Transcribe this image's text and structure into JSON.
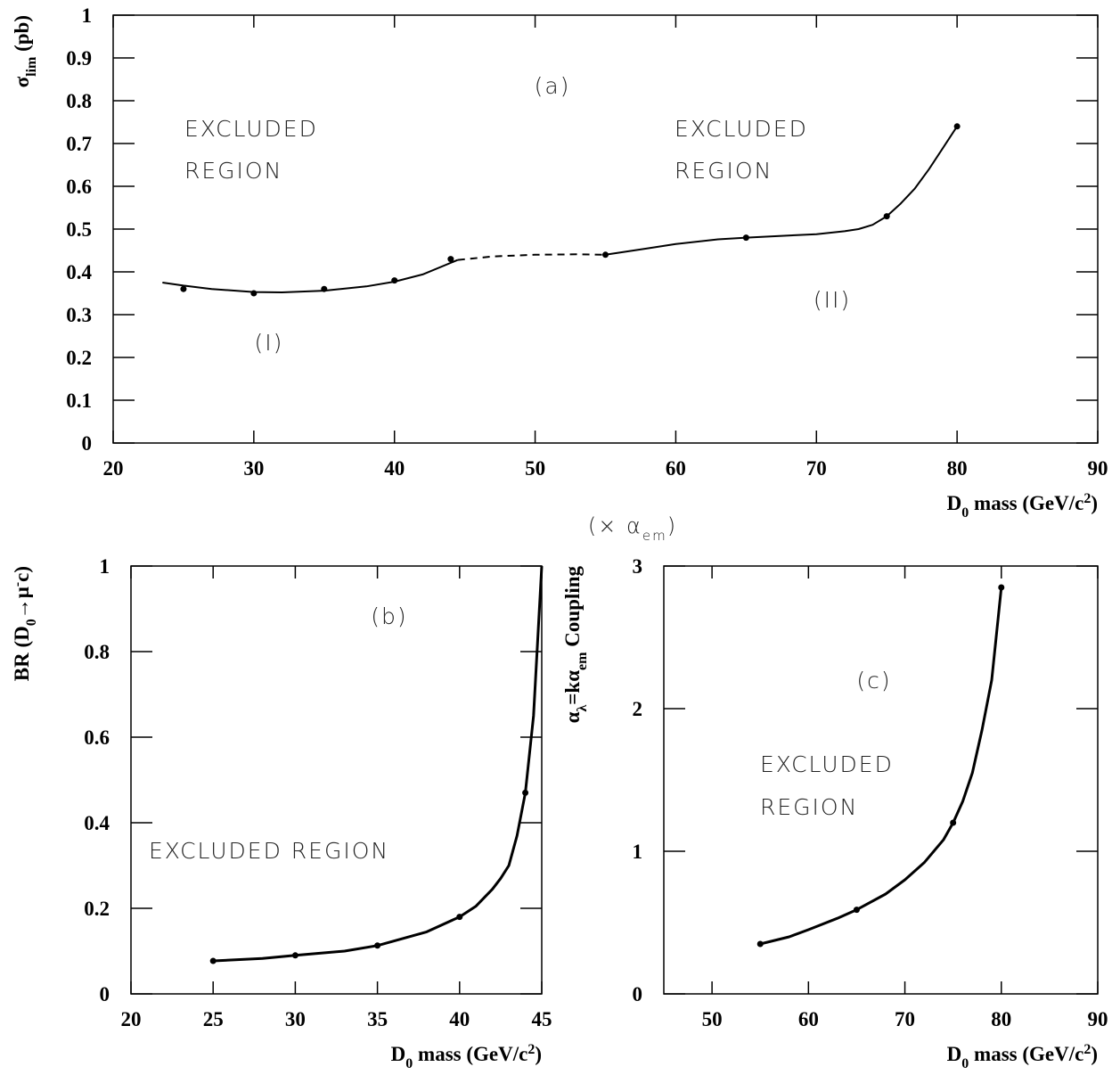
{
  "chart_data": [
    {
      "type": "line",
      "panel_label": "(a)",
      "xlabel": [
        "D",
        "0",
        " mass (GeV/c",
        "2",
        ")"
      ],
      "ylabel": [
        "σ",
        "lim",
        " (pb)"
      ],
      "xlim": [
        20,
        90
      ],
      "xticks": [
        20,
        30,
        40,
        50,
        60,
        70,
        80,
        90
      ],
      "ylim": [
        0,
        1
      ],
      "yticks": [
        0,
        0.1,
        0.2,
        0.3,
        0.4,
        0.5,
        0.6,
        0.7,
        0.8,
        0.9,
        1
      ],
      "points": {
        "x": [
          25,
          30,
          35,
          40,
          44,
          55,
          65,
          75,
          80
        ],
        "y": [
          0.36,
          0.35,
          0.36,
          0.38,
          0.43,
          0.44,
          0.48,
          0.53,
          0.74
        ]
      },
      "curves": [
        {
          "dashed": false,
          "x": [
            23.5,
            25,
            27,
            30,
            32,
            35,
            38,
            40,
            42,
            44.5
          ],
          "y": [
            0.375,
            0.368,
            0.36,
            0.353,
            0.352,
            0.356,
            0.366,
            0.377,
            0.394,
            0.428
          ]
        },
        {
          "dashed": true,
          "x": [
            44.5,
            47,
            50,
            53,
            55
          ],
          "y": [
            0.428,
            0.436,
            0.44,
            0.441,
            0.44
          ]
        },
        {
          "dashed": false,
          "x": [
            55,
            58,
            60,
            63,
            65,
            68,
            70,
            72,
            73,
            74,
            75,
            76,
            77,
            78,
            79,
            80
          ],
          "y": [
            0.44,
            0.455,
            0.465,
            0.476,
            0.48,
            0.485,
            0.488,
            0.495,
            0.5,
            0.51,
            0.53,
            0.56,
            0.595,
            0.64,
            0.69,
            0.74
          ]
        }
      ],
      "annotations": [
        "EXCLUDED",
        "REGION",
        "EXCLUDED",
        "REGION",
        "(I)",
        "(II)"
      ]
    },
    {
      "type": "line",
      "panel_label": "(b)",
      "xlabel": [
        "D",
        "0",
        " mass (GeV/c",
        "2",
        ")"
      ],
      "ylabel": [
        "BR (D",
        "0",
        "→μ",
        "-",
        "c)"
      ],
      "xlim": [
        20,
        45
      ],
      "xticks": [
        20,
        25,
        30,
        35,
        40,
        45
      ],
      "ylim": [
        0,
        1
      ],
      "yticks": [
        0,
        0.2,
        0.4,
        0.6,
        0.8,
        1
      ],
      "points": {
        "x": [
          25,
          30,
          35,
          40,
          44
        ],
        "y": [
          0.077,
          0.09,
          0.113,
          0.18,
          0.47
        ]
      },
      "curves": [
        {
          "dashed": false,
          "x": [
            25,
            28,
            30,
            33,
            35,
            38,
            40,
            41,
            42,
            42.5,
            43,
            43.5,
            44,
            44.5,
            45
          ],
          "y": [
            0.077,
            0.083,
            0.09,
            0.1,
            0.113,
            0.145,
            0.18,
            0.205,
            0.245,
            0.27,
            0.3,
            0.37,
            0.47,
            0.65,
            1
          ]
        }
      ],
      "annotations": [
        "EXCLUDED REGION"
      ]
    },
    {
      "type": "line",
      "panel_label": "(c)",
      "xlabel": [
        "D",
        "0",
        " mass (GeV/c",
        "2",
        ")"
      ],
      "ylabel": [
        "α",
        "λ",
        "=kα",
        "em",
        " Coupling"
      ],
      "yunit": [
        "(× α",
        "em",
        ")"
      ],
      "xlim": [
        45,
        90
      ],
      "xticks": [
        50,
        60,
        70,
        80,
        90
      ],
      "ylim": [
        0,
        3
      ],
      "yticks": [
        0,
        1,
        2,
        3
      ],
      "points": {
        "x": [
          55,
          65,
          75,
          80
        ],
        "y": [
          0.35,
          0.59,
          1.2,
          2.85
        ]
      },
      "curves": [
        {
          "dashed": false,
          "x": [
            55,
            58,
            60,
            63,
            65,
            68,
            70,
            72,
            74,
            75,
            76,
            77,
            78,
            79,
            80
          ],
          "y": [
            0.35,
            0.4,
            0.45,
            0.53,
            0.59,
            0.7,
            0.8,
            0.92,
            1.08,
            1.2,
            1.35,
            1.55,
            1.85,
            2.2,
            2.85
          ]
        }
      ],
      "annotations": [
        "EXCLUDED",
        "REGION"
      ]
    }
  ]
}
